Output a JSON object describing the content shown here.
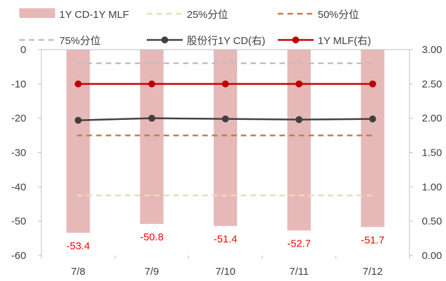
{
  "chart_data": {
    "type": "bar",
    "categories": [
      "7/8",
      "7/9",
      "7/10",
      "7/11",
      "7/12"
    ],
    "series": [
      {
        "name": "1Y CD-1Y MLF",
        "kind": "bar",
        "axis": "left",
        "color": "#E6B9B8",
        "values": [
          -53.4,
          -50.8,
          -51.4,
          -52.7,
          -51.7
        ]
      },
      {
        "name": "25%分位",
        "kind": "line",
        "style": "dashed",
        "axis": "left",
        "color": "#E8DDB5",
        "values": [
          -42.5,
          -42.5,
          -42.5,
          -42.5,
          -42.5
        ]
      },
      {
        "name": "50%分位",
        "kind": "line",
        "style": "dashed",
        "axis": "left",
        "color": "#C27C4E",
        "values": [
          -25,
          -25,
          -25,
          -25,
          -25
        ]
      },
      {
        "name": "75%分位",
        "kind": "line",
        "style": "dashed",
        "axis": "left",
        "color": "#BFBFBF",
        "values": [
          -4,
          -4,
          -4,
          -4,
          -4
        ]
      },
      {
        "name": "股份行1Y CD(右)",
        "kind": "line",
        "marker": "circle",
        "axis": "right",
        "color": "#404040",
        "values": [
          1.97,
          2.0,
          1.99,
          1.98,
          1.99
        ]
      },
      {
        "name": "1Y MLF(右)",
        "kind": "line",
        "marker": "circle",
        "axis": "right",
        "color": "#C00000",
        "values": [
          2.5,
          2.5,
          2.5,
          2.5,
          2.5
        ]
      }
    ],
    "data_labels": {
      "series": "1Y CD-1Y MLF",
      "color": "#FF0000",
      "texts": [
        "-53.4",
        "-50.8",
        "-51.4",
        "-52.7",
        "-51.7"
      ]
    },
    "y_left": {
      "ylim": [
        -60,
        0
      ],
      "ticks": [
        0,
        -10,
        -20,
        -30,
        -40,
        -50,
        -60
      ],
      "tick_labels": [
        "0",
        "-10",
        "-20",
        "-30",
        "-40",
        "-50",
        "-60"
      ]
    },
    "y_right": {
      "ylim": [
        0,
        3
      ],
      "ticks": [
        3,
        2.5,
        2,
        1.5,
        1,
        0.5,
        0
      ],
      "tick_labels": [
        "3.00",
        "2.50",
        "2.00",
        "1.50",
        "1.00",
        "0.50",
        "0.00"
      ]
    },
    "grid": false,
    "legend_position": "top"
  }
}
